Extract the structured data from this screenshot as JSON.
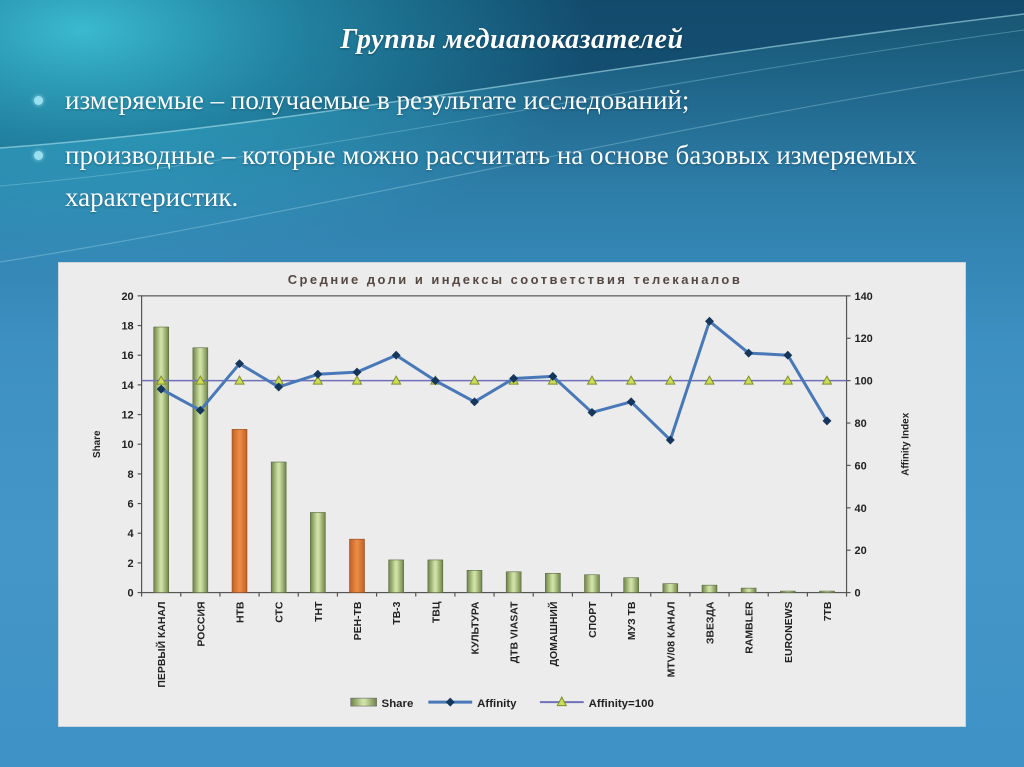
{
  "slide": {
    "title": "Группы медиапоказателей",
    "bullets": [
      "измеряемые – получаемые в результате исследований;",
      "производные – которые можно рассчитать на основе базовых измеряемых характеристик."
    ]
  },
  "chart_data": {
    "type": "bar",
    "subtype": "bar+line combo, dual axis",
    "title": "Средние доли и индексы соответствия телеканалов",
    "categories": [
      "ПЕРВЫЙ КАНАЛ",
      "РОССИЯ",
      "НТВ",
      "СТС",
      "ТНТ",
      "РЕН-ТВ",
      "ТВ-3",
      "ТВЦ",
      "КУЛЬТУРА",
      "ДТВ VIASAT",
      "ДОМАШНИЙ",
      "СПОРТ",
      "МУЗ ТВ",
      "MTV/08 КАНАЛ",
      "ЗВЕЗДА",
      "RAMBLER",
      "EURONEWS",
      "7ТВ"
    ],
    "series": [
      {
        "name": "Share",
        "type": "bar",
        "axis": "left",
        "values": [
          17.9,
          16.5,
          11.0,
          8.8,
          5.4,
          3.6,
          2.2,
          2.2,
          1.5,
          1.4,
          1.3,
          1.2,
          1.0,
          0.6,
          0.5,
          0.3,
          0.1,
          0.1
        ],
        "highlight_indices": [
          2,
          5
        ]
      },
      {
        "name": "Affinity",
        "type": "line",
        "axis": "right",
        "values": [
          96,
          86,
          108,
          97,
          103,
          104,
          112,
          100,
          90,
          101,
          102,
          85,
          90,
          72,
          128,
          113,
          112,
          81
        ]
      },
      {
        "name": "Affinity=100",
        "type": "line",
        "axis": "right",
        "constant": 100
      }
    ],
    "left_axis": {
      "label": "Share",
      "min": 0,
      "max": 20,
      "step": 2
    },
    "right_axis": {
      "label": "Affinity Index",
      "min": 0,
      "max": 140,
      "step": 20
    },
    "legend": [
      "Share",
      "Affinity",
      "Affinity=100"
    ],
    "legend_position": "bottom",
    "grid": false,
    "colors": {
      "panel_bg": "#ececec",
      "title_color": "#574743",
      "axis_stroke": "#555555",
      "bar_green_edge": "#6f8449",
      "bar_green_mid": "#cfe0a4",
      "bar_green_border": "#55683a",
      "bar_orange_edge": "#c06028",
      "bar_orange_mid": "#ea8a44",
      "bar_orange_border": "#8f4a1e",
      "line_blue": "#4878b8",
      "marker_navy": "#16365c",
      "ref_line": "#7070b8",
      "triangle_fill": "#ccdc55",
      "triangle_stroke": "#7f8f2c"
    }
  }
}
